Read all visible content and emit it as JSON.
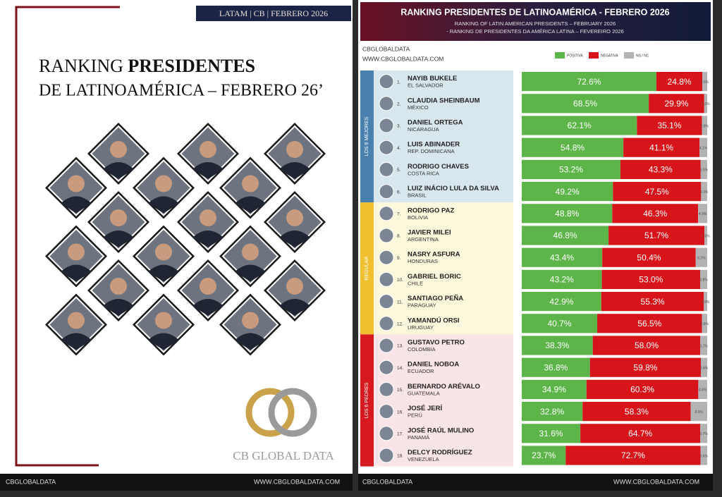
{
  "left_page": {
    "tag": "LATAM | CB | FEBRERO 2026",
    "title_a": "RANKING",
    "title_b": "PRESIDENTES",
    "title_c": "DE LATINOAMÉRICA – FEBRERO 26’",
    "logo_text": "CB GLOBAL DATA",
    "footer_handle": "CBGLOBALDATA",
    "footer_url": "WWW.CBGLOBALDATA.COM"
  },
  "right_page": {
    "source_handle": "CBGLOBALDATA",
    "source_url": "WWW.CBGLOBALDATA.COM",
    "footer_handle": "CBGLOBALDATA",
    "footer_url": "WWW.CBGLOBALDATA.COM"
  },
  "chart_data": {
    "type": "stacked-bar",
    "title": "RANKING PRESIDENTES DE LATINOAMÉRICA - FEBRERO 2026",
    "subtitles": [
      "RANKING OF LATIN AMERICAN PRESIDENTS – FEBRUARY 2026",
      "- RANKING DE PRESIDENTES DA AMÉRICA LATINA – FEVEREIRO 2026"
    ],
    "groups": [
      "LOS 6 MEJORES",
      "REGULAR",
      "LOS 6 PEORES"
    ],
    "group_colors": [
      "#4a80ad",
      "#f0c030",
      "#d71920"
    ],
    "ranks": [
      "1.",
      "2.",
      "3.",
      "4.",
      "5.",
      "6.",
      "7.",
      "8.",
      "9.",
      "10.",
      "11.",
      "12.",
      "13.",
      "14.",
      "15.",
      "16.",
      "17.",
      "18."
    ],
    "categories": [
      "NAYIB BUKELE",
      "CLAUDIA SHEINBAUM",
      "DANIEL ORTEGA",
      "LUIS ABINADER",
      "RODRIGO CHAVES",
      "LUIZ INÁCIO LULA DA SILVA",
      "RODRIGO PAZ",
      "JAVIER MILEI",
      "NASRY ASFURA",
      "GABRIEL BORIC",
      "SANTIAGO PEÑA",
      "YAMANDÚ ORSI",
      "GUSTAVO PETRO",
      "DANIEL NOBOA",
      "BERNARDO ARÉVALO",
      "JOSÉ JERÍ",
      "JOSÉ RAÚL MULINO",
      "DELCY RODRÍGUEZ"
    ],
    "countries": [
      "EL SALVADOR",
      "MÉXICO",
      "NICARAGUA",
      "REP. DOMINICANA",
      "COSTA RICA",
      "BRASIL",
      "BOLIVIA",
      "ARGENTINA",
      "HONDURAS",
      "CHILE",
      "PARAGUAY",
      "URUGUAY",
      "COLOMBIA",
      "ECUADOR",
      "GUATEMALA",
      "PERÚ",
      "PANAMÁ",
      "VENEZUELA"
    ],
    "xlim": [
      0,
      100
    ],
    "series": [
      {
        "name": "POSITIVA",
        "color": "#5db54a",
        "values": [
          72.6,
          68.5,
          62.1,
          54.8,
          53.2,
          49.2,
          48.8,
          46.8,
          43.4,
          43.2,
          42.9,
          40.7,
          38.3,
          36.8,
          34.9,
          32.8,
          31.6,
          23.7
        ],
        "value_labels": [
          "72.6%",
          "68.5%",
          "62.1%",
          "54.8%",
          "53.2%",
          "49.2%",
          "48.8%",
          "46.8%",
          "43.4%",
          "43.2%",
          "42.9%",
          "40.7%",
          "38.3%",
          "36.8%",
          "34.9%",
          "32.8%",
          "31.6%",
          "23.7%"
        ]
      },
      {
        "name": "NEGATIVA",
        "color": "#d7141a",
        "values": [
          24.8,
          29.9,
          35.1,
          41.1,
          43.3,
          47.5,
          46.3,
          51.7,
          50.4,
          53.0,
          55.3,
          56.5,
          58.0,
          59.8,
          60.3,
          58.3,
          64.7,
          72.7
        ],
        "value_labels": [
          "24.8%",
          "29.9%",
          "35.1%",
          "41.1%",
          "43.3%",
          "47.5%",
          "46.3%",
          "51.7%",
          "50.4%",
          "53.0%",
          "55.3%",
          "56.5%",
          "58.0%",
          "59.8%",
          "60.3%",
          "58.3%",
          "64.7%",
          "72.7%"
        ]
      },
      {
        "name": "NS / NC",
        "color": "#b3b3b3",
        "values": [
          2.6,
          1.6,
          2.8,
          4.1,
          3.5,
          3.3,
          4.9,
          1.5,
          6.2,
          3.8,
          1.8,
          2.8,
          3.7,
          3.4,
          4.8,
          8.9,
          3.7,
          3.6
        ],
        "value_labels": [
          "2.6%",
          "1.6%",
          "2.8%",
          "4.1%",
          "3.5%",
          "3.3%",
          "4.9%",
          "1.5%",
          "6.2%",
          "3.8%",
          "1.8%",
          "2.8%",
          "3.7%",
          "3.4%",
          "4.8%",
          "8.9%",
          "3.7%",
          "3.6%"
        ]
      }
    ]
  }
}
